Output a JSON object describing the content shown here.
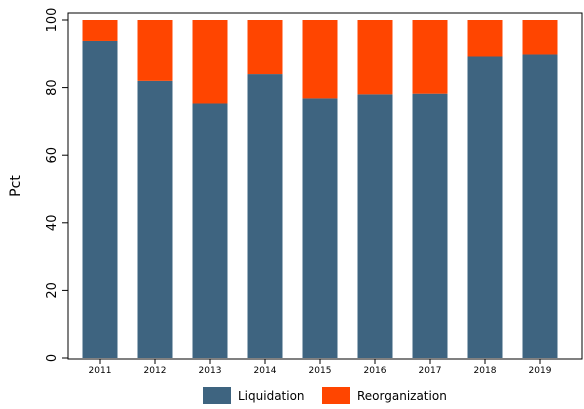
{
  "chart_data": {
    "type": "bar",
    "stacked": true,
    "title": "",
    "xlabel": "",
    "ylabel": "Pct",
    "ylim": [
      0,
      100
    ],
    "yticks": [
      0,
      20,
      40,
      60,
      80,
      100
    ],
    "grid": false,
    "legend_position": "bottom",
    "categories": [
      "2011",
      "2012",
      "2013",
      "2014",
      "2015",
      "2016",
      "2017",
      "2018",
      "2019"
    ],
    "series": [
      {
        "name": "Liquidation",
        "color": "#3e6480",
        "values": [
          93.8,
          82,
          75.3,
          84,
          76.8,
          78,
          78.2,
          89.2,
          89.8
        ]
      },
      {
        "name": "Reorganization",
        "color": "#ff4500",
        "values": [
          6.2,
          18,
          24.7,
          16,
          23.2,
          22,
          21.8,
          10.8,
          10.2
        ]
      }
    ]
  }
}
